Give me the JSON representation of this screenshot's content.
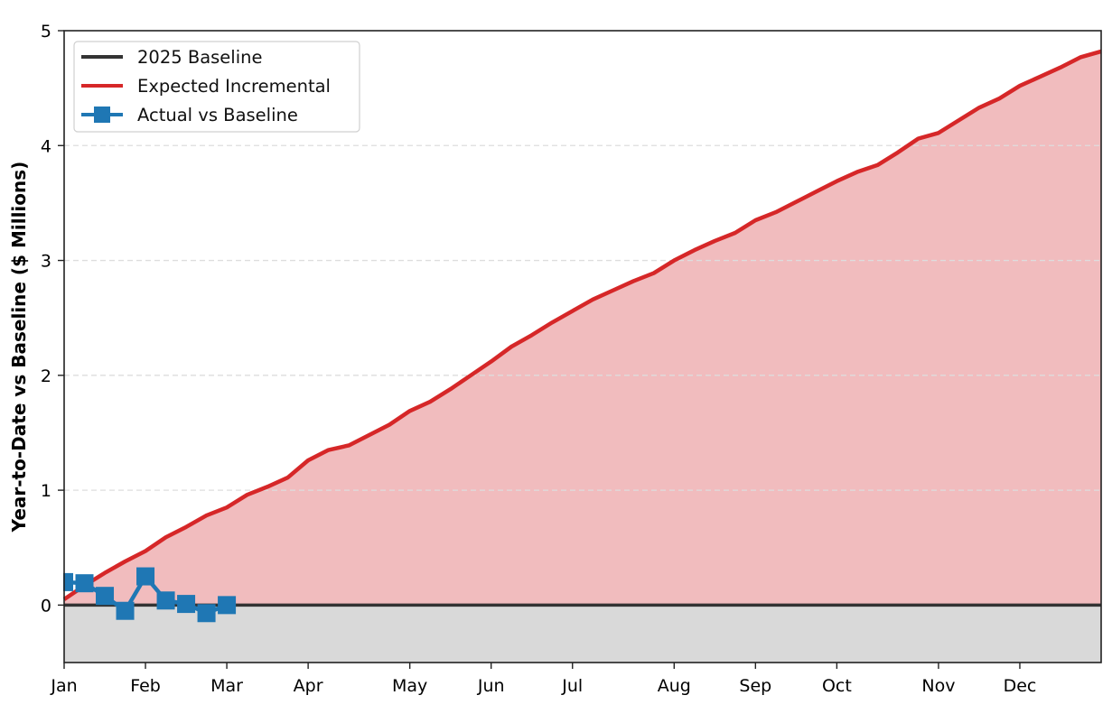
{
  "chart_data": {
    "type": "line",
    "title": "",
    "xlabel": "",
    "ylabel": "Year-to-Date vs Baseline ($ Millions)",
    "ylim": [
      -0.5,
      5
    ],
    "xlim": [
      0,
      51
    ],
    "grid": {
      "y": true,
      "style": "dashed",
      "color": "#dddddd"
    },
    "legend_position": "upper left",
    "x_unit": "week index (0 = first week of Jan)",
    "x_ticks": [
      {
        "label": "Jan",
        "week": 0
      },
      {
        "label": "Feb",
        "week": 4
      },
      {
        "label": "Mar",
        "week": 8
      },
      {
        "label": "Apr",
        "week": 12
      },
      {
        "label": "May",
        "week": 17
      },
      {
        "label": "Jun",
        "week": 21
      },
      {
        "label": "Jul",
        "week": 25
      },
      {
        "label": "Aug",
        "week": 30
      },
      {
        "label": "Sep",
        "week": 34
      },
      {
        "label": "Oct",
        "week": 38
      },
      {
        "label": "Nov",
        "week": 43
      },
      {
        "label": "Dec",
        "week": 47
      }
    ],
    "y_ticks": [
      0,
      1,
      2,
      3,
      4,
      5
    ],
    "series": [
      {
        "name": "2025 Baseline",
        "color": "#333333",
        "style": "line",
        "x": [
          0,
          51
        ],
        "values": [
          0,
          0
        ]
      },
      {
        "name": "Expected Incremental",
        "color": "#d62728",
        "fill_color": "#f1bcbe",
        "style": "line-filled",
        "x": [
          0,
          1,
          2,
          3,
          4,
          5,
          6,
          7,
          8,
          9,
          10,
          11,
          12,
          13,
          14,
          15,
          16,
          17,
          18,
          19,
          20,
          21,
          22,
          23,
          24,
          25,
          26,
          27,
          28,
          29,
          30,
          31,
          32,
          33,
          34,
          35,
          36,
          37,
          38,
          39,
          40,
          41,
          42,
          43,
          44,
          45,
          46,
          47,
          48,
          49,
          50,
          51
        ],
        "values": [
          0.05,
          0.17,
          0.28,
          0.38,
          0.47,
          0.59,
          0.68,
          0.78,
          0.85,
          0.96,
          1.03,
          1.11,
          1.26,
          1.35,
          1.39,
          1.48,
          1.57,
          1.69,
          1.77,
          1.88,
          2.0,
          2.12,
          2.25,
          2.35,
          2.46,
          2.56,
          2.66,
          2.74,
          2.82,
          2.89,
          3.0,
          3.09,
          3.17,
          3.24,
          3.35,
          3.42,
          3.51,
          3.6,
          3.69,
          3.77,
          3.83,
          3.94,
          4.06,
          4.11,
          4.22,
          4.33,
          4.41,
          4.52,
          4.6,
          4.68,
          4.77,
          4.82
        ]
      },
      {
        "name": "Actual vs Baseline",
        "color": "#1f77b4",
        "style": "line-markers",
        "marker": "square",
        "x": [
          0,
          1,
          2,
          3,
          4,
          5,
          6,
          7,
          8
        ],
        "values": [
          0.2,
          0.19,
          0.08,
          -0.05,
          0.25,
          0.04,
          0.01,
          -0.07,
          0.0
        ]
      }
    ],
    "below_zero_fill_color": "#d9d9d9"
  },
  "legend": {
    "items": [
      {
        "label": "2025 Baseline",
        "color": "#333333",
        "kind": "line"
      },
      {
        "label": "Expected Incremental",
        "color": "#d62728",
        "kind": "line"
      },
      {
        "label": "Actual vs Baseline",
        "color": "#1f77b4",
        "kind": "line-marker"
      }
    ]
  }
}
